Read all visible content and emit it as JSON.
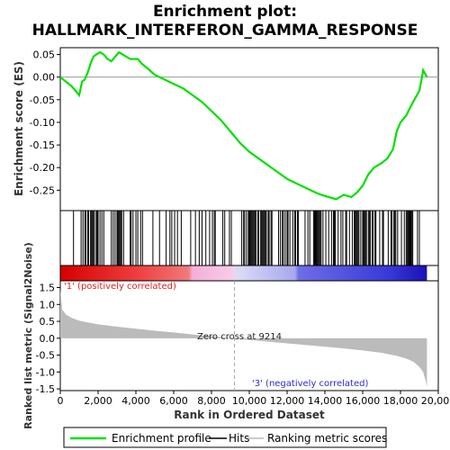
{
  "title_line1": "Enrichment plot:",
  "title_line2": "HALLMARK_INTERFERON_GAMMA_RESPONSE",
  "colors": {
    "es_line": "#00e000",
    "hits": "#000000",
    "metric_fill": "#bbbbbb",
    "positive_text": "#e0201f",
    "negative_text": "#2b2bd8"
  },
  "chart_data": {
    "type": "line",
    "panels": {
      "enrichment": {
        "ylabel": "Enrichment score (ES)",
        "ylim": [
          -0.295,
          0.065
        ],
        "yticks": [
          0.05,
          0.0,
          -0.05,
          -0.1,
          -0.15,
          -0.2,
          -0.25
        ],
        "ytick_labels": [
          "0.05",
          "0.00",
          "-0.05",
          "-0.10",
          "-0.15",
          "-0.20",
          "-0.25"
        ],
        "series_name": "Enrichment profile",
        "x": [
          0,
          300,
          600,
          800,
          1000,
          1150,
          1300,
          1450,
          1600,
          1750,
          1900,
          2100,
          2300,
          2500,
          2700,
          2900,
          3100,
          3300,
          3500,
          3700,
          3900,
          4100,
          4300,
          4600,
          5000,
          5500,
          6000,
          6500,
          7000,
          7500,
          8000,
          8500,
          9000,
          9500,
          10000,
          10500,
          11000,
          11500,
          12000,
          12500,
          13000,
          13500,
          13800,
          14200,
          14600,
          15000,
          15400,
          15700,
          16000,
          16300,
          16600,
          17000,
          17300,
          17600,
          17800,
          18000,
          18300,
          18600,
          18800,
          19000,
          19200,
          19400
        ],
        "y": [
          0.0,
          -0.01,
          -0.02,
          -0.03,
          -0.04,
          -0.01,
          -0.005,
          0.01,
          0.03,
          0.045,
          0.05,
          0.055,
          0.05,
          0.04,
          0.035,
          0.045,
          0.055,
          0.05,
          0.045,
          0.04,
          0.04,
          0.04,
          0.03,
          0.02,
          0.005,
          -0.005,
          -0.015,
          -0.025,
          -0.04,
          -0.055,
          -0.075,
          -0.095,
          -0.12,
          -0.145,
          -0.165,
          -0.18,
          -0.195,
          -0.21,
          -0.225,
          -0.235,
          -0.245,
          -0.255,
          -0.26,
          -0.265,
          -0.27,
          -0.26,
          -0.265,
          -0.255,
          -0.24,
          -0.215,
          -0.2,
          -0.19,
          -0.18,
          -0.16,
          -0.12,
          -0.1,
          -0.085,
          -0.06,
          -0.045,
          -0.03,
          0.015,
          0.0
        ]
      },
      "hits": {
        "positions": [
          700,
          1100,
          1200,
          1300,
          1350,
          1450,
          1500,
          1600,
          1650,
          1700,
          1750,
          1800,
          1900,
          1950,
          2000,
          2100,
          2200,
          2300,
          2700,
          2800,
          2900,
          3000,
          3050,
          3100,
          3150,
          3200,
          3250,
          3350,
          3700,
          3750,
          3850,
          4000,
          4100,
          4250,
          4350,
          4900,
          5250,
          5600,
          5800,
          5900,
          6050,
          6200,
          6400,
          6900,
          7150,
          7350,
          7500,
          7700,
          7900,
          8050,
          8150,
          8200,
          8600,
          8700,
          8950,
          9050,
          9600,
          9700,
          9750,
          9850,
          9950,
          10000,
          10050,
          10100,
          10150,
          10200,
          10250,
          10300,
          10350,
          10450,
          10500,
          10600,
          10650,
          10700,
          10750,
          10800,
          10850,
          10900,
          11000,
          11050,
          11150,
          11200,
          11550,
          11650,
          11750,
          11800,
          11900,
          12000,
          12050,
          12150,
          12300,
          12400,
          12450,
          12550,
          12600,
          12950,
          13100,
          13200,
          13400,
          13450,
          13500,
          13550,
          13600,
          13650,
          13700,
          13750,
          13800,
          13900,
          14050,
          14200,
          14350,
          14450,
          14500,
          14550,
          14700,
          14850,
          14950,
          15100,
          15150,
          15300,
          15450,
          15550,
          15600,
          15650,
          15700,
          15750,
          15800,
          15900,
          16000,
          16050,
          16100,
          16150,
          16200,
          16300,
          16350,
          16400,
          16500,
          16550,
          16650,
          16700,
          16900,
          17050,
          17100,
          17350,
          17500,
          17550,
          17650,
          17700,
          17750,
          17850,
          18050,
          18200,
          18300,
          18350,
          18400,
          18450,
          18500,
          18550,
          18600,
          18650,
          18900,
          19000
        ]
      },
      "heat_strip": {
        "zero_cross_position": 9214
      },
      "metric": {
        "ylabel": "Ranked list metric (Signal2Noise)",
        "ylim": [
          -1.55,
          1.7
        ],
        "yticks": [
          1.5,
          1.0,
          0.5,
          0.0,
          -0.5,
          -1.0,
          -1.5
        ],
        "ytick_labels": [
          "1.5",
          "1.0",
          "0.5",
          "0.0",
          "-0.5",
          "-1.0",
          "-1.5"
        ],
        "x": [
          0,
          100,
          300,
          600,
          1000,
          1500,
          2000,
          3000,
          4000,
          5000,
          6000,
          7000,
          8000,
          9214,
          10000,
          11000,
          12000,
          13000,
          14000,
          15000,
          16000,
          17000,
          17800,
          18300,
          18700,
          19000,
          19200,
          19350,
          19400
        ],
        "y": [
          1.45,
          0.85,
          0.7,
          0.6,
          0.52,
          0.46,
          0.41,
          0.34,
          0.28,
          0.22,
          0.17,
          0.11,
          0.06,
          0.0,
          -0.05,
          -0.1,
          -0.15,
          -0.2,
          -0.25,
          -0.3,
          -0.36,
          -0.43,
          -0.52,
          -0.6,
          -0.7,
          -0.85,
          -1.0,
          -1.3,
          -1.45
        ]
      }
    },
    "x_axis": {
      "label": "Rank in Ordered Dataset",
      "xlim": [
        0,
        20000
      ],
      "ticks": [
        0,
        2000,
        4000,
        6000,
        8000,
        10000,
        12000,
        14000,
        16000,
        18000,
        20000
      ],
      "tick_labels": [
        "0",
        "2,000",
        "4,000",
        "6,000",
        "8,000",
        "10,000",
        "12,000",
        "14,000",
        "16,000",
        "18,000",
        "20,000"
      ]
    },
    "annotations": {
      "positive": "'1' (positively correlated)",
      "negative": "'3' (negatively correlated)",
      "zero_cross": "Zero cross at 9214"
    },
    "legend": {
      "placement": "bottom",
      "items": [
        "Enrichment profile",
        "Hits",
        "Ranking metric scores"
      ]
    }
  }
}
